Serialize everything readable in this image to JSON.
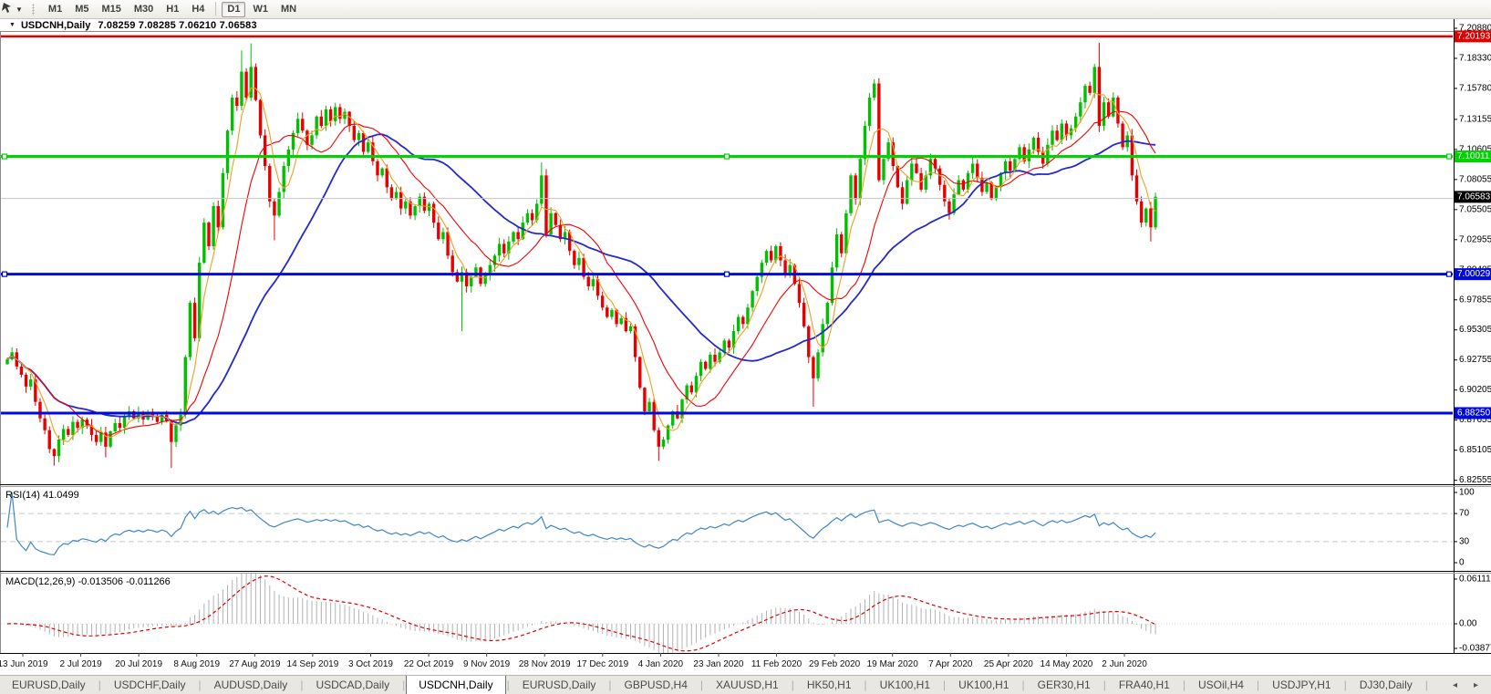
{
  "toolbar": {
    "timeframes": [
      {
        "label": "M1",
        "active": false
      },
      {
        "label": "M5",
        "active": false
      },
      {
        "label": "M15",
        "active": false
      },
      {
        "label": "M30",
        "active": false
      },
      {
        "label": "H1",
        "active": false
      },
      {
        "label": "H4",
        "active": false
      },
      {
        "label": "D1",
        "active": true
      },
      {
        "label": "W1",
        "active": false
      },
      {
        "label": "MN",
        "active": false
      }
    ]
  },
  "chart": {
    "symbol_title": "USDCNH,Daily",
    "ohlc_values": "7.08259 7.08285 7.06210 7.06583",
    "collapse_glyph": "▼"
  },
  "chart_data": {
    "type": "candlestick",
    "symbol": "USDCNH",
    "timeframe": "Daily",
    "candle_up_color": "#00c000",
    "candle_down_color": "#e80000",
    "first_open": 6.924,
    "closes": [
      6.928,
      6.934,
      6.922,
      6.915,
      6.905,
      6.911,
      6.892,
      6.878,
      6.868,
      6.852,
      6.846,
      6.86,
      6.869,
      6.864,
      6.875,
      6.87,
      6.877,
      6.872,
      6.864,
      6.858,
      6.866,
      6.854,
      6.867,
      6.874,
      6.87,
      6.88,
      6.884,
      6.878,
      6.883,
      6.877,
      6.883,
      6.88,
      6.875,
      6.881,
      6.876,
      6.858,
      6.872,
      6.881,
      6.93,
      6.976,
      6.946,
      7.01,
      7.044,
      7.024,
      7.058,
      7.04,
      7.086,
      7.122,
      7.15,
      7.143,
      7.172,
      7.15,
      7.176,
      7.148,
      7.118,
      7.092,
      7.062,
      7.05,
      7.07,
      7.092,
      7.106,
      7.12,
      7.132,
      7.122,
      7.11,
      7.118,
      7.134,
      7.126,
      7.14,
      7.13,
      7.142,
      7.132,
      7.138,
      7.126,
      7.114,
      7.12,
      7.104,
      7.112,
      7.096,
      7.084,
      7.09,
      7.074,
      7.064,
      7.07,
      7.056,
      7.062,
      7.05,
      7.058,
      7.066,
      7.054,
      7.06,
      7.044,
      7.03,
      7.036,
      7.016,
      7.002,
      6.994,
      7.002,
      6.99,
      6.998,
      7.006,
      6.992,
      7.0,
      7.008,
      7.016,
      7.026,
      7.018,
      7.028,
      7.036,
      7.03,
      7.044,
      7.052,
      7.046,
      7.06,
      7.084,
      7.034,
      7.052,
      7.042,
      7.03,
      7.036,
      7.02,
      7.008,
      7.014,
      6.998,
      6.99,
      6.996,
      6.982,
      6.972,
      6.964,
      6.97,
      6.958,
      6.963,
      6.952,
      6.956,
      6.93,
      6.904,
      6.884,
      6.892,
      6.868,
      6.854,
      6.86,
      6.872,
      6.884,
      6.878,
      6.894,
      6.906,
      6.9,
      6.914,
      6.926,
      6.92,
      6.932,
      6.926,
      6.934,
      6.944,
      6.938,
      6.952,
      6.964,
      6.958,
      6.972,
      6.986,
      6.998,
      7.01,
      7.02,
      7.012,
      7.024,
      7.012,
      7.0,
      7.008,
      6.992,
      6.976,
      6.956,
      6.93,
      6.912,
      6.934,
      6.958,
      6.976,
      7.006,
      7.034,
      7.018,
      7.052,
      7.084,
      7.064,
      7.098,
      7.126,
      7.15,
      7.162,
      7.08,
      7.098,
      7.112,
      7.092,
      7.074,
      7.06,
      7.08,
      7.094,
      7.086,
      7.072,
      7.084,
      7.098,
      7.09,
      7.076,
      7.062,
      7.052,
      7.068,
      7.08,
      7.072,
      7.086,
      7.094,
      7.082,
      7.07,
      7.078,
      7.064,
      7.074,
      7.086,
      7.096,
      7.088,
      7.098,
      7.108,
      7.096,
      7.106,
      7.116,
      7.104,
      7.094,
      7.11,
      7.122,
      7.114,
      7.128,
      7.118,
      7.124,
      7.134,
      7.146,
      7.16,
      7.154,
      7.176,
      7.126,
      7.146,
      7.134,
      7.15,
      7.128,
      7.108,
      7.118,
      7.084,
      7.062,
      7.044,
      7.056,
      7.04,
      7.066
    ],
    "wick_overrides": [
      {
        "i": 10,
        "low": 6.838
      },
      {
        "i": 21,
        "low": 6.845
      },
      {
        "i": 35,
        "low": 6.836
      },
      {
        "i": 50,
        "high": 7.19
      },
      {
        "i": 52,
        "high": 7.196
      },
      {
        "i": 57,
        "low": 7.029
      },
      {
        "i": 97,
        "low": 6.952
      },
      {
        "i": 114,
        "high": 7.095
      },
      {
        "i": 139,
        "low": 6.842
      },
      {
        "i": 172,
        "low": 6.888
      },
      {
        "i": 185,
        "high": 7.1655
      },
      {
        "i": 233,
        "high": 7.1965
      },
      {
        "i": 244,
        "low": 7.028
      }
    ],
    "moving_averages": [
      {
        "period": 34,
        "color": "#2629cc",
        "width": 1.8
      },
      {
        "period": 14,
        "color": "#f40000",
        "width": 1.1
      },
      {
        "period": 5,
        "color": "#f0a01e",
        "width": 1.1
      }
    ],
    "hlines": [
      {
        "price": 7.0645,
        "label": null,
        "color": "#c4c4c4",
        "width": 1,
        "handles": false
      },
      {
        "price": 7.20193,
        "label": "7.20193",
        "color": "#e00000",
        "width": 2.5,
        "handles": false
      },
      {
        "price": 7.10011,
        "label": "7.10011",
        "color": "#00d400",
        "width": 3,
        "handles": true
      },
      {
        "price": 7.00029,
        "label": "7.00029",
        "color": "#0009e0",
        "width": 3,
        "handles": true
      },
      {
        "price": 6.8825,
        "label": "6.88250",
        "color": "#0009e0",
        "width": 3,
        "handles": false
      }
    ],
    "current_price": {
      "value": 7.06583,
      "label": "7.06583",
      "box_color": "#000000",
      "text_color": "#ffffff"
    },
    "price_axis_ticks": [
      "7.20880",
      "7.18330",
      "7.15780",
      "7.13155",
      "7.10605",
      "7.08055",
      "7.05505",
      "7.02955",
      "7.00405",
      "6.97855",
      "6.95305",
      "6.92755",
      "6.90205",
      "6.87655",
      "6.85105",
      "6.82555"
    ],
    "date_axis_labels": [
      "13 Jun 2019",
      "2 Jul 2019",
      "20 Jul 2019",
      "8 Aug 2019",
      "27 Aug 2019",
      "14 Sep 2019",
      "3 Oct 2019",
      "22 Oct 2019",
      "9 Nov 2019",
      "28 Nov 2019",
      "17 Dec 2019",
      "4 Jan 2020",
      "23 Jan 2020",
      "11 Feb 2020",
      "29 Feb 2020",
      "19 Mar 2020",
      "7 Apr 2020",
      "25 Apr 2020",
      "14 May 2020",
      "2 Jun 2020"
    ],
    "rsi": {
      "label": "RSI(14) 41.0499",
      "period": 14,
      "axis_labels": [
        "100",
        "70",
        "30",
        "0"
      ],
      "level_lines": [
        70,
        30
      ],
      "color": "#3f86c9"
    },
    "macd": {
      "label": "MACD(12,26,9) -0.013506 -0.011266",
      "fast": 12,
      "slow": 26,
      "signal": 9,
      "axis_labels": [
        "0.061119",
        "0.00",
        "-0.03877"
      ],
      "histogram_color": "#b2b2b2",
      "signal_color": "#e00000"
    },
    "shift_marker": true
  },
  "tabs": {
    "items": [
      {
        "label": "EURUSD,Daily",
        "active": false
      },
      {
        "label": "USDCHF,Daily",
        "active": false
      },
      {
        "label": "AUDUSD,Daily",
        "active": false
      },
      {
        "label": "USDCAD,Daily",
        "active": false
      },
      {
        "label": "USDCNH,Daily",
        "active": true
      },
      {
        "label": "EURUSD,Daily",
        "active": false
      },
      {
        "label": "GBPUSD,H4",
        "active": false
      },
      {
        "label": "XAUUSD,H1",
        "active": false
      },
      {
        "label": "HK50,H1",
        "active": false
      },
      {
        "label": "UK100,H1",
        "active": false
      },
      {
        "label": "UK100,H1",
        "active": false
      },
      {
        "label": "GER30,H1",
        "active": false
      },
      {
        "label": "FRA40,H1",
        "active": false
      },
      {
        "label": "USOil,H4",
        "active": false
      },
      {
        "label": "USDJPY,H1",
        "active": false
      },
      {
        "label": "DJ30,Daily",
        "active": false
      }
    ],
    "scroll_left_icon": "◂",
    "scroll_right_icon": "▸"
  }
}
